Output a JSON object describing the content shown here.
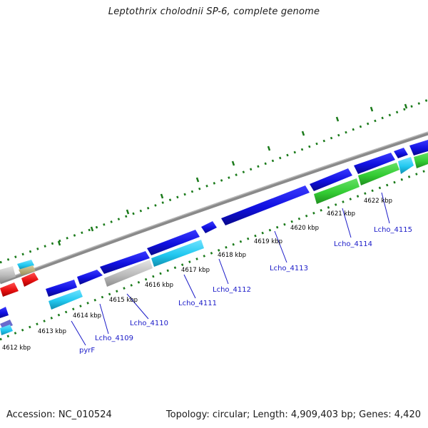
{
  "title": "Leptothrix cholodnii SP-6, complete genome",
  "footer": {
    "accession": "Accession: NC_010524",
    "summary": "Topology: circular; Length: 4,909,403 bp; Genes: 4,420"
  },
  "kbp_labels": [
    "4612 kbp",
    "4613 kbp",
    "4614 kbp",
    "4615 kbp",
    "4616 kbp",
    "4617 kbp",
    "4618 kbp",
    "4619 kbp",
    "4620 kbp",
    "4621 kbp",
    "4622 kbp"
  ],
  "gene_labels": [
    "pyrF",
    "Lcho_4109",
    "Lcho_4110",
    "Lcho_4111",
    "Lcho_4112",
    "Lcho_4113",
    "Lcho_4114",
    "Lcho_4115"
  ],
  "colors": {
    "forward_strand": "#1010e0",
    "reverse_light": "#22c8f0",
    "reverse_gray": "#bcbcbc",
    "rna_green": "#33cc33",
    "red_feature": "#e81010",
    "backbone": "#8a8a8a",
    "tick": "#1a7a1a",
    "label": "#1a1ac8"
  }
}
